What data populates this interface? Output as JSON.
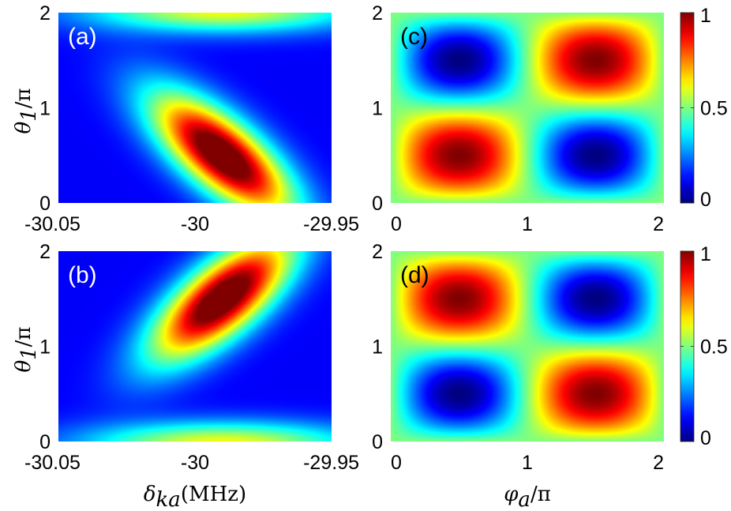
{
  "chart_data": [
    {
      "type": "heatmap",
      "panel": "(a)",
      "label_color": "#ffffff",
      "x_ticks": [
        "-30.05",
        "-30",
        "-29.95"
      ],
      "xlim": [
        -30.05,
        -29.95
      ],
      "y_ticks": [
        "0",
        "1",
        "2"
      ],
      "ylim": [
        0,
        2
      ],
      "ylabel_var": "θ",
      "ylabel_sub": "1",
      "ylabel_rest": "/π",
      "xlabel_var": "",
      "xlabel_sub": "",
      "xlabel_rest": "",
      "peaks": [
        {
          "x": -29.99,
          "y": 0.5,
          "amp": 1.0,
          "sx": 0.018,
          "sy": 0.45,
          "rho": -0.72
        },
        {
          "x": -29.99,
          "y": 2.02,
          "amp": 0.5,
          "sx": 0.035,
          "sy": 0.16,
          "rho": 0.0
        }
      ],
      "background": 0.12
    },
    {
      "type": "heatmap",
      "panel": "(b)",
      "label_color": "#ffffff",
      "x_ticks": [
        "-30.05",
        "-30",
        "-29.95"
      ],
      "xlim": [
        -30.05,
        -29.95
      ],
      "y_ticks": [
        "0",
        "1",
        "2"
      ],
      "ylim": [
        0,
        2
      ],
      "ylabel_var": "θ",
      "ylabel_sub": "1",
      "ylabel_rest": "/π",
      "xlabel_var": "δ",
      "xlabel_sub": "ka",
      "xlabel_rest": "(MHz)",
      "peaks": [
        {
          "x": -29.99,
          "y": 1.5,
          "amp": 1.0,
          "sx": 0.018,
          "sy": 0.45,
          "rho": 0.72
        },
        {
          "x": -29.99,
          "y": -0.02,
          "amp": 0.5,
          "sx": 0.035,
          "sy": 0.16,
          "rho": 0.0
        }
      ],
      "background": 0.12
    },
    {
      "type": "heatmap",
      "panel": "(c)",
      "label_color": "#000000",
      "x_ticks": [
        "0",
        "1",
        "2"
      ],
      "xlim": [
        0,
        2
      ],
      "y_ticks": [
        "0",
        "1",
        "2"
      ],
      "ylim": [
        0,
        2
      ],
      "xlabel_var": "",
      "xlabel_sub": "",
      "xlabel_rest": "",
      "sign": 1,
      "colorbar": {
        "ticks": [
          "0",
          "0.5",
          "1"
        ],
        "range": [
          0,
          1
        ]
      }
    },
    {
      "type": "heatmap",
      "panel": "(d)",
      "label_color": "#000000",
      "x_ticks": [
        "0",
        "1",
        "2"
      ],
      "xlim": [
        0,
        2
      ],
      "y_ticks": [
        "0",
        "1",
        "2"
      ],
      "ylim": [
        0,
        2
      ],
      "xlabel_var": "φ",
      "xlabel_sub": "a",
      "xlabel_rest": "/π",
      "sign": -1,
      "colorbar": {
        "ticks": [
          "0",
          "0.5",
          "1"
        ],
        "range": [
          0,
          1
        ]
      }
    }
  ],
  "colormap": "jet"
}
